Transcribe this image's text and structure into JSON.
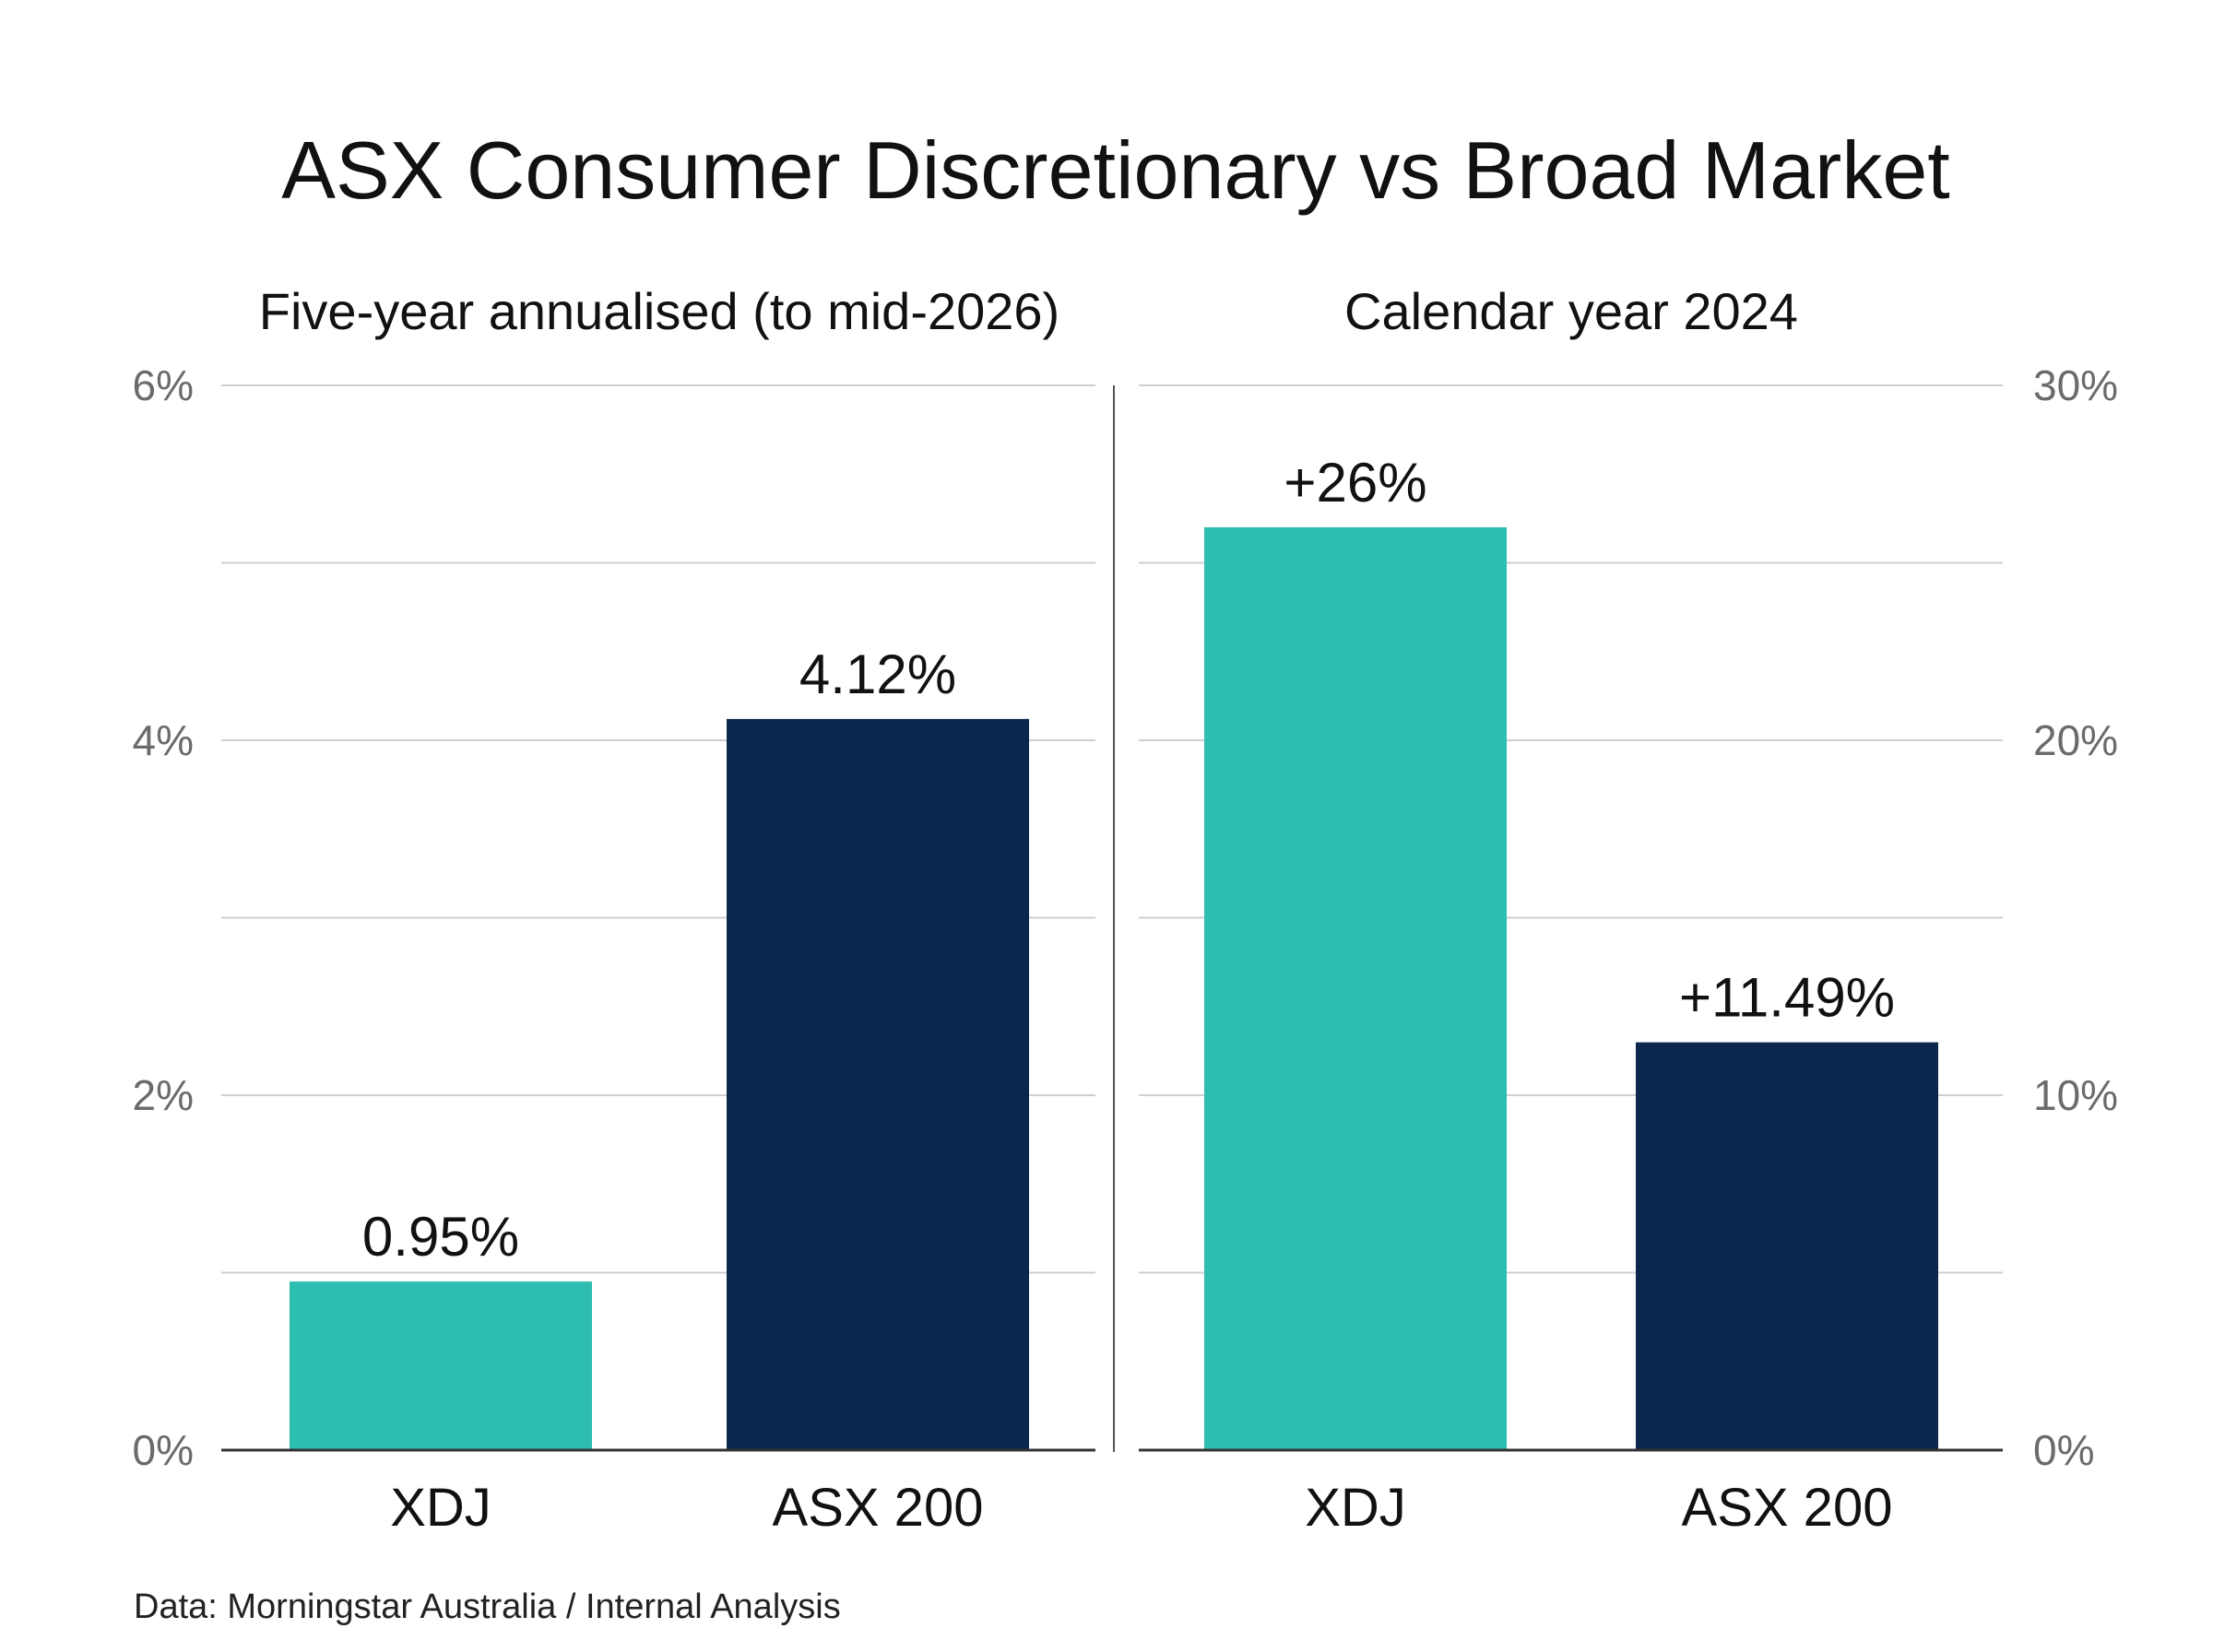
{
  "title": "ASX Consumer Discretionary vs Broad Market",
  "source": "Data: Morningstar Australia / Internal Analysis",
  "colors": {
    "xdj": "#2dbdb1",
    "asx200": "#0c274d"
  },
  "chart_data": [
    {
      "type": "bar",
      "title": "Five-year annualised (to mid-2026)",
      "categories": [
        "XDJ",
        "ASX 200"
      ],
      "values": [
        0.95,
        4.12
      ],
      "value_labels": [
        "0.95%",
        "4.12%"
      ],
      "ylim": [
        0,
        6
      ],
      "yticks": [
        0,
        2,
        4,
        6
      ],
      "ytick_labels": [
        "0%",
        "2%",
        "4%",
        "6%"
      ],
      "axis_side": "left",
      "grid": true
    },
    {
      "type": "bar",
      "title": "Calendar year 2024",
      "categories": [
        "XDJ",
        "ASX 200"
      ],
      "values": [
        26,
        11.49
      ],
      "value_labels": [
        "+26%",
        "+11.49%"
      ],
      "ylim": [
        0,
        30
      ],
      "yticks": [
        0,
        10,
        20,
        30
      ],
      "ytick_labels": [
        "0%",
        "10%",
        "20%",
        "30%"
      ],
      "axis_side": "right",
      "grid": true
    }
  ]
}
